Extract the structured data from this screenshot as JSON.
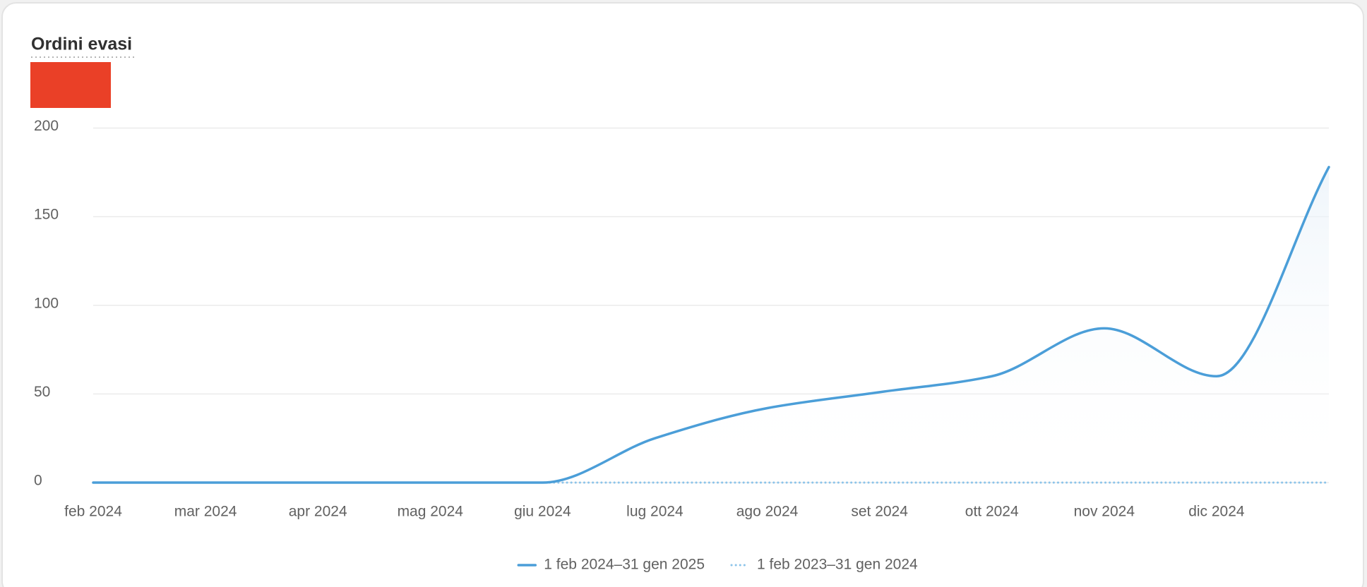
{
  "chart_data": {
    "type": "line",
    "title": "Ordini evasi",
    "categories": [
      "feb 2024",
      "mar 2024",
      "apr 2024",
      "mag 2024",
      "giu 2024",
      "lug 2024",
      "ago 2024",
      "set 2024",
      "ott 2024",
      "nov 2024",
      "dic 2024",
      null
    ],
    "series": [
      {
        "name": "1 feb 2024–31 gen 2025",
        "color": "#4b9ed8",
        "style": "solid",
        "values": [
          0,
          0,
          0,
          0,
          0,
          25,
          42,
          51,
          60,
          87,
          60,
          178
        ]
      },
      {
        "name": "1 feb 2023–31 gen 2024",
        "color": "#8cc4ea",
        "style": "dotted",
        "values": [
          0,
          0,
          0,
          0,
          0,
          0,
          0,
          0,
          0,
          0,
          0,
          0
        ]
      }
    ],
    "ylim": [
      0,
      200
    ],
    "yticks": [
      0,
      50,
      100,
      150,
      200
    ],
    "grid": true,
    "legend": "bottom"
  }
}
